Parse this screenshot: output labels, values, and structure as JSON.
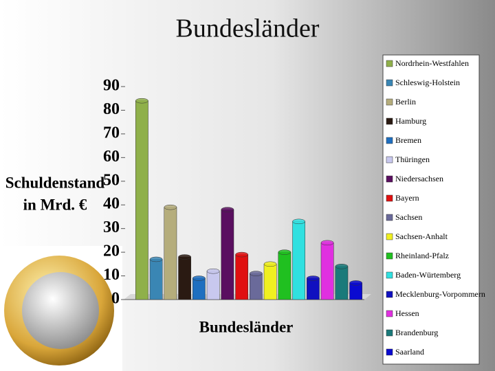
{
  "chart_data": {
    "type": "bar",
    "title": "Bundesländer",
    "x_label": "Bundesländer",
    "y_label": [
      "Schuldenstand",
      "in Mrd. €"
    ],
    "categories": [
      "Nordrhein-Westfahlen",
      "Schleswig-Holstein",
      "Berlin",
      "Hamburg",
      "Bremen",
      "Thüringen",
      "Niedersachsen",
      "Bayern",
      "Sachsen",
      "Sachsen-Anhalt",
      "Rheinland-Pfalz",
      "Baden-Würtemberg",
      "Mecklenburg-Vorpommern",
      "Hessen",
      "Brandenburg",
      "Saarland"
    ],
    "values": [
      84,
      17,
      39,
      18,
      9,
      12,
      38,
      19,
      11,
      15,
      20,
      33,
      9,
      24,
      14,
      7
    ],
    "colors": [
      "#8fb04a",
      "#3a86b4",
      "#b5ad7c",
      "#2a1a12",
      "#1e6fc0",
      "#c8c8ee",
      "#5a0f60",
      "#e01010",
      "#6a6a9a",
      "#f0f020",
      "#20c020",
      "#30e0e0",
      "#1010c0",
      "#e030e0",
      "#1a7a7a",
      "#0a0ad0"
    ],
    "ylim": [
      0,
      90
    ],
    "yticks": [
      0,
      10,
      20,
      30,
      40,
      50,
      60,
      70,
      80,
      90
    ]
  }
}
